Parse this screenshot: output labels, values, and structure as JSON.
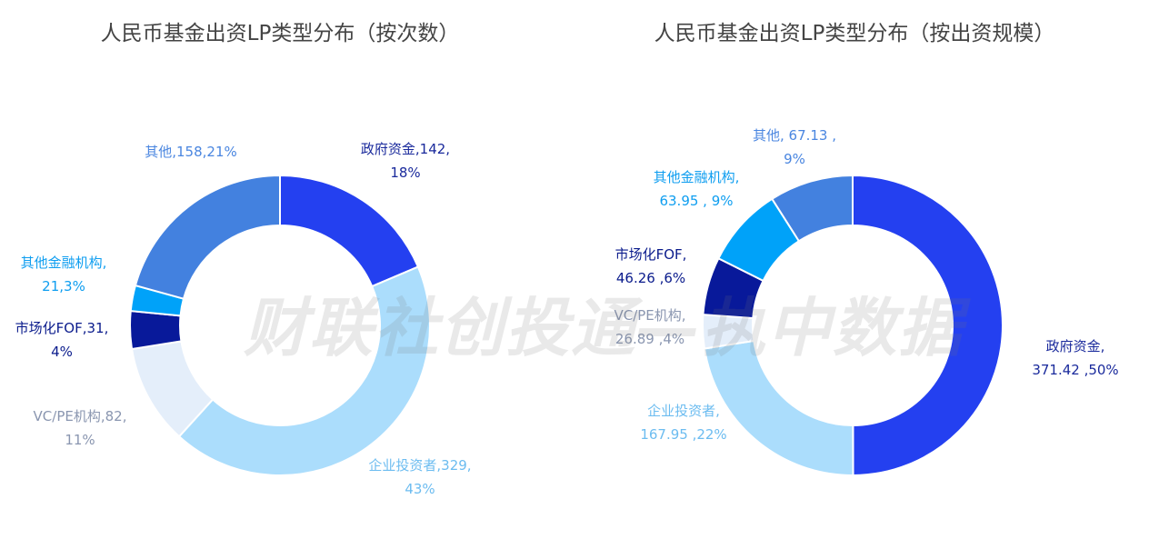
{
  "watermark": "财联社创投通—执中数据",
  "chart_data": [
    {
      "type": "pie",
      "donut": true,
      "title": "人民币基金出资LP类型分布（按次数）",
      "legend": "none",
      "slices": [
        {
          "name": "政府资金",
          "value": 142,
          "percent": 18,
          "color": "#2440F0",
          "label_lines": [
            "政府资金,142,",
            "18%"
          ]
        },
        {
          "name": "企业投资者",
          "value": 329,
          "percent": 43,
          "color": "#ABDDFC",
          "label_lines": [
            "企业投资者,329,",
            "43%"
          ]
        },
        {
          "name": "VC/PE机构",
          "value": 82,
          "percent": 11,
          "color": "#E4EEFA",
          "label_lines": [
            "VC/PE机构,82,",
            "11%"
          ]
        },
        {
          "name": "市场化FOF",
          "value": 31,
          "percent": 4,
          "color": "#08199A",
          "label_lines": [
            "市场化FOF,31,",
            "4%"
          ]
        },
        {
          "name": "其他金融机构",
          "value": 21,
          "percent": 3,
          "color": "#00A2F9",
          "label_lines": [
            "其他金融机构,",
            "21,3%"
          ]
        },
        {
          "name": "其他",
          "value": 158,
          "percent": 21,
          "color": "#4381DF",
          "label_lines": [
            "其他,158,21%"
          ]
        }
      ]
    },
    {
      "type": "pie",
      "donut": true,
      "title": "人民币基金出资LP类型分布（按出资规模）",
      "legend": "none",
      "slices": [
        {
          "name": "政府资金",
          "value": 371.42,
          "percent": 50,
          "color": "#2440F0",
          "label_lines": [
            "政府资金,",
            "371.42 ,50%"
          ]
        },
        {
          "name": "企业投资者",
          "value": 167.95,
          "percent": 22,
          "color": "#ABDDFC",
          "label_lines": [
            "企业投资者,",
            "167.95 ,22%"
          ]
        },
        {
          "name": "VC/PE机构",
          "value": 26.89,
          "percent": 4,
          "color": "#E4EEFA",
          "label_lines": [
            "VC/PE机构,",
            "26.89 ,4%"
          ]
        },
        {
          "name": "市场化FOF",
          "value": 46.26,
          "percent": 6,
          "color": "#08199A",
          "label_lines": [
            "市场化FOF,",
            "46.26 ,6%"
          ]
        },
        {
          "name": "其他金融机构",
          "value": 63.95,
          "percent": 9,
          "color": "#00A2F9",
          "label_lines": [
            "其他金融机构,",
            "63.95 , 9%"
          ]
        },
        {
          "name": "其他",
          "value": 67.13,
          "percent": 9,
          "color": "#4381DF",
          "label_lines": [
            "其他, 67.13 ,",
            "9%"
          ]
        }
      ]
    }
  ]
}
